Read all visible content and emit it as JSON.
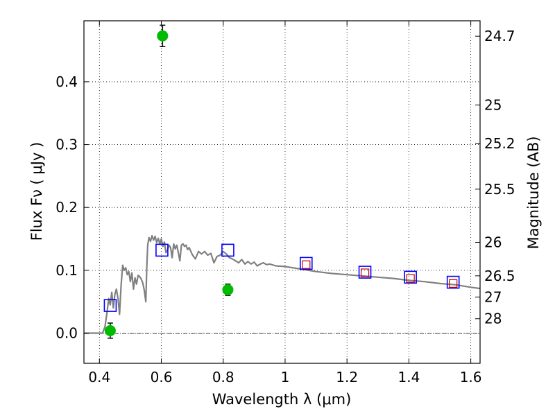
{
  "chart_data": {
    "type": "scatter",
    "title": "",
    "xlabel": "Wavelength  λ (μm)",
    "ylabel": "Flux  Fν  ( μJy )",
    "ylabel_right": "Magnitude (AB)",
    "xlim": [
      0.35,
      1.63
    ],
    "ylim": [
      -0.048,
      0.497
    ],
    "grid": true,
    "grid_style": "dotted",
    "zero_line": true,
    "x_ticks": [
      {
        "value": 0.4,
        "label": "0.4"
      },
      {
        "value": 0.6,
        "label": "0.6"
      },
      {
        "value": 0.8,
        "label": "0.8"
      },
      {
        "value": 1.0,
        "label": "1"
      },
      {
        "value": 1.2,
        "label": "1.2"
      },
      {
        "value": 1.4,
        "label": "1.4"
      },
      {
        "value": 1.6,
        "label": "1.6"
      }
    ],
    "y_ticks": [
      {
        "value": 0.0,
        "label": "0.0"
      },
      {
        "value": 0.1,
        "label": "0.1"
      },
      {
        "value": 0.2,
        "label": "0.2"
      },
      {
        "value": 0.3,
        "label": "0.3"
      },
      {
        "value": 0.4,
        "label": "0.4"
      }
    ],
    "right_ticks": [
      {
        "flux": 0.4725,
        "label": "24.7"
      },
      {
        "flux": 0.3631,
        "label": "25"
      },
      {
        "flux": 0.302,
        "label": "25.2"
      },
      {
        "flux": 0.2291,
        "label": "25.5"
      },
      {
        "flux": 0.1445,
        "label": "26"
      },
      {
        "flux": 0.0912,
        "label": "26.5"
      },
      {
        "flux": 0.0575,
        "label": "27"
      },
      {
        "flux": 0.0229,
        "label": "28"
      }
    ],
    "series": [
      {
        "kind": "line",
        "color": "#808080",
        "x": [
          0.35,
          0.41,
          0.418,
          0.425,
          0.43,
          0.435,
          0.44,
          0.445,
          0.45,
          0.455,
          0.46,
          0.465,
          0.47,
          0.475,
          0.48,
          0.485,
          0.49,
          0.495,
          0.5,
          0.505,
          0.51,
          0.515,
          0.52,
          0.525,
          0.53,
          0.535,
          0.54,
          0.545,
          0.55,
          0.553,
          0.556,
          0.56,
          0.565,
          0.57,
          0.575,
          0.58,
          0.585,
          0.59,
          0.595,
          0.6,
          0.605,
          0.61,
          0.615,
          0.62,
          0.625,
          0.63,
          0.635,
          0.64,
          0.645,
          0.65,
          0.655,
          0.66,
          0.665,
          0.67,
          0.675,
          0.68,
          0.685,
          0.69,
          0.7,
          0.71,
          0.72,
          0.73,
          0.74,
          0.75,
          0.76,
          0.77,
          0.78,
          0.79,
          0.8,
          0.81,
          0.82,
          0.83,
          0.84,
          0.85,
          0.86,
          0.87,
          0.88,
          0.89,
          0.9,
          0.91,
          0.92,
          0.93,
          0.94,
          0.95,
          0.97,
          1.0,
          1.05,
          1.1,
          1.15,
          1.2,
          1.25,
          1.3,
          1.35,
          1.4,
          1.45,
          1.5,
          1.55,
          1.6,
          1.63
        ],
        "y": [
          0.0,
          0.0,
          0.01,
          0.035,
          0.055,
          0.045,
          0.065,
          0.04,
          0.062,
          0.07,
          0.055,
          0.03,
          0.075,
          0.108,
          0.1,
          0.104,
          0.093,
          0.098,
          0.082,
          0.096,
          0.07,
          0.088,
          0.078,
          0.092,
          0.09,
          0.086,
          0.08,
          0.068,
          0.05,
          0.105,
          0.14,
          0.152,
          0.146,
          0.155,
          0.148,
          0.154,
          0.144,
          0.151,
          0.142,
          0.15,
          0.138,
          0.145,
          0.128,
          0.132,
          0.14,
          0.136,
          0.12,
          0.142,
          0.134,
          0.14,
          0.128,
          0.115,
          0.14,
          0.142,
          0.138,
          0.14,
          0.133,
          0.136,
          0.125,
          0.118,
          0.13,
          0.126,
          0.13,
          0.124,
          0.127,
          0.112,
          0.122,
          0.124,
          0.13,
          0.126,
          0.12,
          0.118,
          0.115,
          0.112,
          0.117,
          0.11,
          0.114,
          0.11,
          0.113,
          0.107,
          0.11,
          0.112,
          0.109,
          0.11,
          0.107,
          0.106,
          0.102,
          0.098,
          0.095,
          0.093,
          0.091,
          0.089,
          0.087,
          0.084,
          0.082,
          0.079,
          0.077,
          0.073,
          0.071
        ]
      },
      {
        "kind": "open-square",
        "color": "#0000ff",
        "x": [
          0.435,
          0.602,
          0.815,
          1.068,
          1.258,
          1.405,
          1.543
        ],
        "y": [
          0.044,
          0.132,
          0.132,
          0.111,
          0.097,
          0.089,
          0.081
        ]
      },
      {
        "kind": "open-square-small",
        "color": "#cc0000",
        "x": [
          1.068,
          1.258,
          1.405,
          1.543
        ],
        "y": [
          0.109,
          0.096,
          0.087,
          0.079
        ]
      },
      {
        "kind": "filled-circle",
        "color": "#00bb00",
        "x": [
          0.435,
          0.604,
          0.815
        ],
        "y": [
          0.004,
          0.473,
          0.069
        ],
        "yerr": [
          0.012,
          0.017,
          0.009
        ]
      }
    ]
  }
}
